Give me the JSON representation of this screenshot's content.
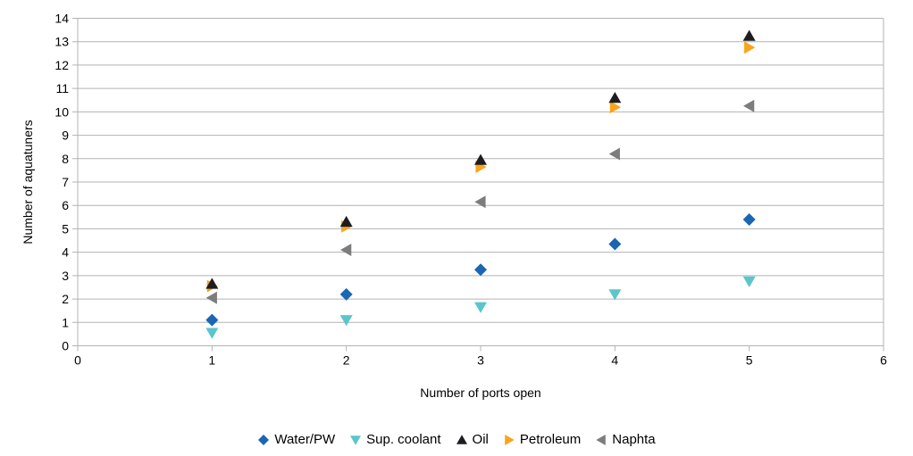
{
  "chart_data": {
    "type": "scatter",
    "title": "",
    "xlabel": "Number of ports open",
    "ylabel": "Number of aquatuners",
    "xlim": [
      0,
      6
    ],
    "ylim": [
      0,
      14
    ],
    "x_ticks": [
      0,
      1,
      2,
      3,
      4,
      5,
      6
    ],
    "y_ticks": [
      0,
      1,
      2,
      3,
      4,
      5,
      6,
      7,
      8,
      9,
      10,
      11,
      12,
      13,
      14
    ],
    "grid": "horizontal-only",
    "legend_position": "bottom",
    "x": [
      1,
      2,
      3,
      4,
      5
    ],
    "series": [
      {
        "name": "Water/PW",
        "marker": "diamond",
        "color": "#1A66B2",
        "values": [
          1.1,
          2.2,
          3.25,
          4.35,
          5.4
        ]
      },
      {
        "name": "Sup. coolant",
        "marker": "triangle-down",
        "color": "#5BC5CC",
        "values": [
          0.55,
          1.1,
          1.65,
          2.2,
          2.75
        ]
      },
      {
        "name": "Oil",
        "marker": "triangle-up",
        "color": "#1D1D21",
        "values": [
          2.65,
          5.3,
          7.95,
          10.6,
          13.25
        ]
      },
      {
        "name": "Petroleum",
        "marker": "triangle-right",
        "color": "#F9A41C",
        "values": [
          2.55,
          5.1,
          7.65,
          10.2,
          12.75
        ]
      },
      {
        "name": "Naphta",
        "marker": "triangle-left",
        "color": "#7D7D7D",
        "values": [
          2.05,
          4.1,
          6.15,
          8.2,
          10.25
        ]
      }
    ],
    "colors": {
      "axis": "#B3B3B3",
      "grid": "#B3B3B3",
      "text": "#000000",
      "background": "#FFFFFF"
    }
  }
}
